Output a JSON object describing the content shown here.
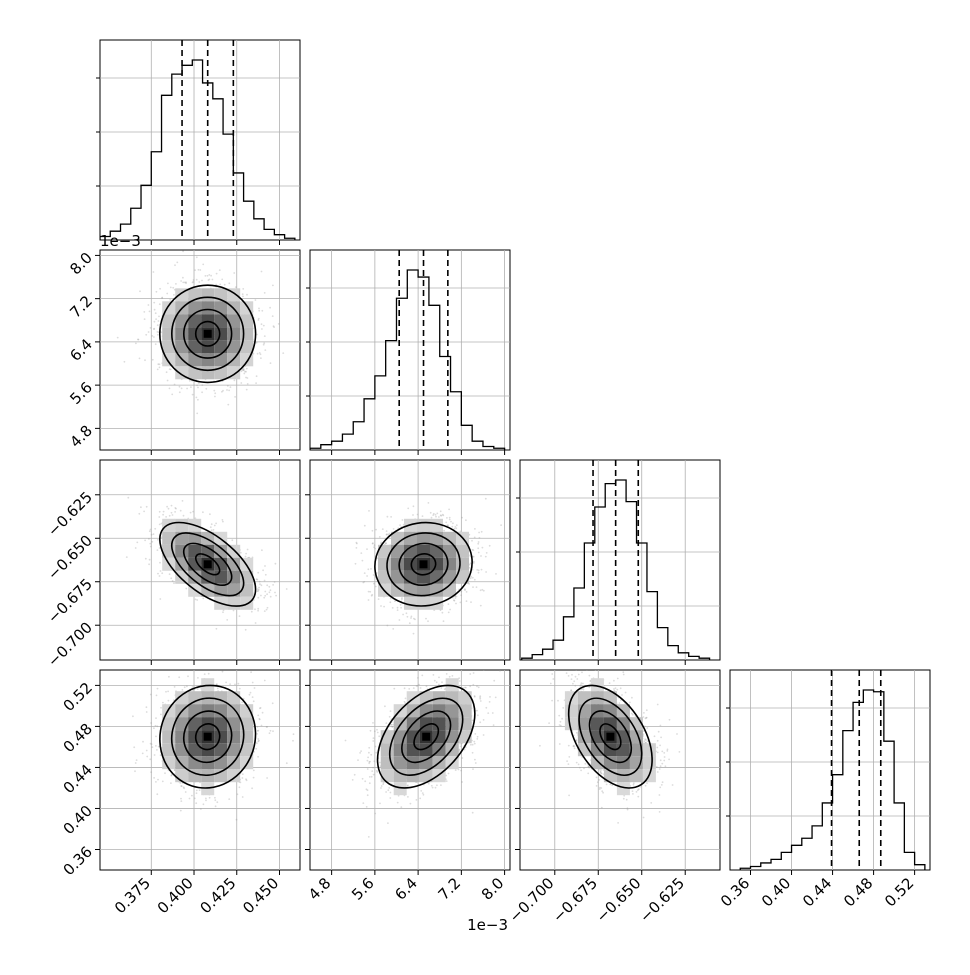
{
  "chart_data": {
    "type": "corner",
    "grid": true,
    "quantiles": [
      0.16,
      0.5,
      0.84
    ],
    "parameters": [
      {
        "ticks": [
          0.375,
          0.4,
          0.425,
          0.45
        ],
        "tick_labels": [
          "0.375",
          "0.400",
          "0.425",
          "0.450"
        ],
        "range": [
          0.345,
          0.462
        ],
        "quantile_values": [
          0.393,
          0.408,
          0.423
        ],
        "hist_x": [
          0.348,
          0.354,
          0.36,
          0.366,
          0.372,
          0.378,
          0.384,
          0.39,
          0.396,
          0.402,
          0.408,
          0.414,
          0.42,
          0.426,
          0.432,
          0.438,
          0.444,
          0.45,
          0.456
        ],
        "hist_y": [
          0.02,
          0.05,
          0.09,
          0.18,
          0.31,
          0.5,
          0.82,
          0.94,
          0.99,
          1.02,
          0.89,
          0.8,
          0.6,
          0.38,
          0.22,
          0.12,
          0.06,
          0.03,
          0.01
        ],
        "offset_label": ""
      },
      {
        "ticks": [
          4.8,
          5.6,
          6.4,
          7.2,
          8.0
        ],
        "tick_labels": [
          "4.8",
          "5.6",
          "6.4",
          "7.2",
          "8.0"
        ],
        "range": [
          4.4,
          8.1
        ],
        "quantile_values": [
          6.05,
          6.5,
          6.95
        ],
        "hist_x": [
          4.5,
          4.7,
          4.9,
          5.1,
          5.3,
          5.5,
          5.7,
          5.9,
          6.1,
          6.3,
          6.5,
          6.7,
          6.9,
          7.1,
          7.3,
          7.5,
          7.7,
          7.9
        ],
        "hist_y": [
          0.01,
          0.03,
          0.05,
          0.09,
          0.16,
          0.29,
          0.42,
          0.62,
          0.86,
          1.02,
          0.98,
          0.82,
          0.53,
          0.33,
          0.14,
          0.05,
          0.02,
          0.01
        ],
        "offset_label": "1e−3"
      },
      {
        "ticks": [
          -0.7,
          -0.675,
          -0.65,
          -0.625
        ],
        "tick_labels": [
          "−0.700",
          "−0.675",
          "−0.650",
          "−0.625"
        ],
        "range": [
          -0.72,
          -0.605
        ],
        "quantile_values": [
          -0.678,
          -0.665,
          -0.652
        ],
        "hist_x": [
          -0.716,
          -0.71,
          -0.704,
          -0.698,
          -0.692,
          -0.686,
          -0.68,
          -0.674,
          -0.668,
          -0.662,
          -0.656,
          -0.65,
          -0.644,
          -0.638,
          -0.632,
          -0.626,
          -0.62,
          -0.614
        ],
        "hist_y": [
          0.01,
          0.03,
          0.06,
          0.11,
          0.24,
          0.4,
          0.65,
          0.85,
          0.98,
          1.0,
          0.88,
          0.65,
          0.38,
          0.18,
          0.08,
          0.04,
          0.02,
          0.01
        ],
        "offset_label": ""
      },
      {
        "ticks": [
          0.36,
          0.4,
          0.44,
          0.48,
          0.52
        ],
        "tick_labels": [
          "0.36",
          "0.40",
          "0.44",
          "0.48",
          "0.52"
        ],
        "range": [
          0.34,
          0.535
        ],
        "quantile_values": [
          0.439,
          0.466,
          0.487
        ],
        "hist_x": [
          0.355,
          0.365,
          0.375,
          0.385,
          0.395,
          0.405,
          0.415,
          0.425,
          0.435,
          0.445,
          0.455,
          0.465,
          0.475,
          0.485,
          0.495,
          0.505,
          0.515,
          0.525
        ],
        "hist_y": [
          0.01,
          0.02,
          0.04,
          0.06,
          0.1,
          0.14,
          0.18,
          0.25,
          0.38,
          0.54,
          0.79,
          0.95,
          1.02,
          1.01,
          0.73,
          0.38,
          0.1,
          0.03
        ],
        "offset_label": ""
      }
    ],
    "pairs": [
      {
        "row": 1,
        "col": 0,
        "mean": [
          0.408,
          6.55
        ],
        "std": [
          0.014,
          0.45
        ],
        "corr": 0.0
      },
      {
        "row": 2,
        "col": 0,
        "mean": [
          0.408,
          -0.665
        ],
        "std": [
          0.014,
          0.012
        ],
        "corr": -0.6
      },
      {
        "row": 2,
        "col": 1,
        "mean": [
          6.5,
          -0.665
        ],
        "std": [
          0.45,
          0.012
        ],
        "corr": 0.05
      },
      {
        "row": 3,
        "col": 0,
        "mean": [
          0.408,
          0.47
        ],
        "std": [
          0.014,
          0.025
        ],
        "corr": 0.05
      },
      {
        "row": 3,
        "col": 1,
        "mean": [
          6.55,
          0.47
        ],
        "std": [
          0.45,
          0.025
        ],
        "corr": 0.45
      },
      {
        "row": 3,
        "col": 2,
        "mean": [
          -0.668,
          0.47
        ],
        "std": [
          0.012,
          0.025
        ],
        "corr": -0.45
      }
    ],
    "offset_label_row1_y": "1e−3",
    "offset_label_bottom_x": "1e−3"
  }
}
